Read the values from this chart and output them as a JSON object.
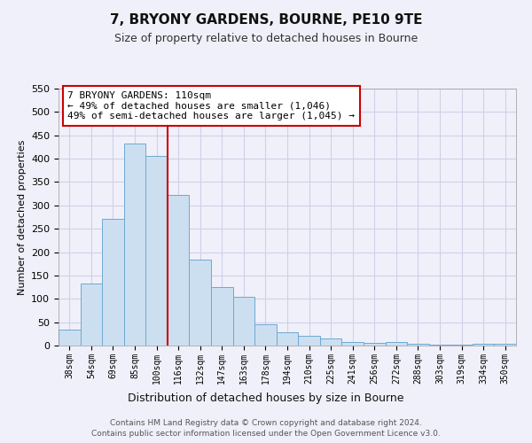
{
  "title": "7, BRYONY GARDENS, BOURNE, PE10 9TE",
  "subtitle": "Size of property relative to detached houses in Bourne",
  "xlabel": "Distribution of detached houses by size in Bourne",
  "ylabel": "Number of detached properties",
  "bar_labels": [
    "38sqm",
    "54sqm",
    "69sqm",
    "85sqm",
    "100sqm",
    "116sqm",
    "132sqm",
    "147sqm",
    "163sqm",
    "178sqm",
    "194sqm",
    "210sqm",
    "225sqm",
    "241sqm",
    "256sqm",
    "272sqm",
    "288sqm",
    "303sqm",
    "319sqm",
    "334sqm",
    "350sqm"
  ],
  "bar_values": [
    35,
    133,
    272,
    433,
    405,
    323,
    184,
    125,
    104,
    45,
    29,
    20,
    15,
    7,
    5,
    8,
    3,
    2,
    2,
    4,
    3
  ],
  "bar_color": "#ccdff0",
  "bar_edge_color": "#6fa8d0",
  "vline_color": "#cc0000",
  "vline_index": 5,
  "annotation_title": "7 BRYONY GARDENS: 110sqm",
  "annotation_line1": "← 49% of detached houses are smaller (1,046)",
  "annotation_line2": "49% of semi-detached houses are larger (1,045) →",
  "annotation_box_color": "#ffffff",
  "annotation_box_edge": "#cc0000",
  "ylim": [
    0,
    550
  ],
  "yticks": [
    0,
    50,
    100,
    150,
    200,
    250,
    300,
    350,
    400,
    450,
    500,
    550
  ],
  "footer1": "Contains HM Land Registry data © Crown copyright and database right 2024.",
  "footer2": "Contains public sector information licensed under the Open Government Licence v3.0.",
  "bg_color": "#f0f0fa",
  "plot_bg_color": "#f0f0fa",
  "grid_color": "#d0d0e8"
}
